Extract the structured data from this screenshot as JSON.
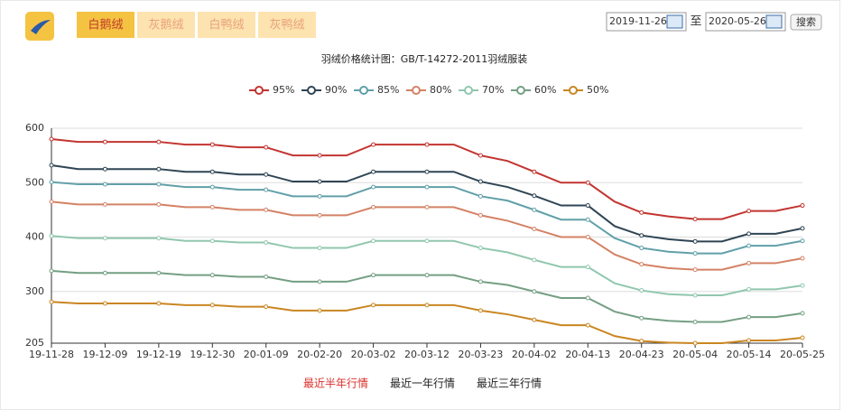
{
  "tabs": [
    "白鹅绒",
    "灰鹅绒",
    "白鸭绒",
    "灰鸭绒"
  ],
  "date_from": "2019-11-26",
  "to_label": "至",
  "date_to": "2020-05-26",
  "search": "搜索",
  "chart_data": {
    "type": "line",
    "title": "羽绒价格统计图：GB/T-14272-2011羽绒服装",
    "categories": [
      "19-11-28",
      null,
      "19-12-09",
      null,
      "19-12-19",
      null,
      "19-12-30",
      null,
      "20-01-09",
      null,
      "20-02-20",
      null,
      "20-03-02",
      null,
      "20-03-12",
      null,
      "20-03-23",
      null,
      "20-04-02",
      null,
      "20-04-13",
      null,
      "20-04-23",
      null,
      "20-05-04",
      null,
      "20-05-14",
      null,
      "20-05-25"
    ],
    "ylim": [
      205,
      600
    ],
    "yticks": [
      205,
      300,
      400,
      500,
      600
    ],
    "grid": true,
    "series": [
      {
        "name": "95%",
        "color": "#c23531",
        "values": [
          580,
          575,
          575,
          575,
          575,
          570,
          570,
          565,
          565,
          550,
          550,
          550,
          570,
          570,
          570,
          570,
          550,
          540,
          520,
          500,
          500,
          465,
          445,
          438,
          433,
          433,
          448,
          448,
          458
        ]
      },
      {
        "name": "90%",
        "color": "#2f4554",
        "values": [
          532,
          525,
          525,
          525,
          525,
          520,
          520,
          515,
          515,
          502,
          502,
          502,
          520,
          520,
          520,
          520,
          502,
          492,
          476,
          458,
          458,
          420,
          403,
          396,
          392,
          392,
          406,
          406,
          416
        ]
      },
      {
        "name": "85%",
        "color": "#61a0a8",
        "values": [
          501,
          497,
          497,
          497,
          497,
          492,
          492,
          487,
          487,
          475,
          475,
          475,
          492,
          492,
          492,
          492,
          475,
          467,
          450,
          432,
          432,
          398,
          380,
          373,
          370,
          370,
          384,
          384,
          393
        ]
      },
      {
        "name": "80%",
        "color": "#d48265",
        "values": [
          465,
          460,
          460,
          460,
          460,
          455,
          455,
          450,
          450,
          440,
          440,
          440,
          455,
          455,
          455,
          455,
          440,
          430,
          415,
          400,
          400,
          368,
          350,
          343,
          340,
          340,
          352,
          352,
          361
        ]
      },
      {
        "name": "70%",
        "color": "#91c7ae",
        "values": [
          402,
          398,
          398,
          398,
          398,
          393,
          393,
          390,
          390,
          380,
          380,
          380,
          393,
          393,
          393,
          393,
          380,
          372,
          358,
          345,
          345,
          315,
          302,
          295,
          293,
          293,
          304,
          304,
          311
        ]
      },
      {
        "name": "60%",
        "color": "#749f83",
        "values": [
          338,
          334,
          334,
          334,
          334,
          330,
          330,
          327,
          327,
          318,
          318,
          318,
          330,
          330,
          330,
          330,
          318,
          312,
          300,
          288,
          288,
          263,
          251,
          246,
          244,
          244,
          253,
          253,
          260
        ]
      },
      {
        "name": "50%",
        "color": "#ca8622",
        "values": [
          281,
          278,
          278,
          278,
          278,
          275,
          275,
          272,
          272,
          265,
          265,
          265,
          275,
          275,
          275,
          275,
          265,
          258,
          248,
          238,
          238,
          218,
          209,
          206,
          205,
          205,
          210,
          210,
          215
        ]
      }
    ]
  },
  "range_links": [
    "最近半年行情",
    "最近一年行情",
    "最近三年行情"
  ]
}
